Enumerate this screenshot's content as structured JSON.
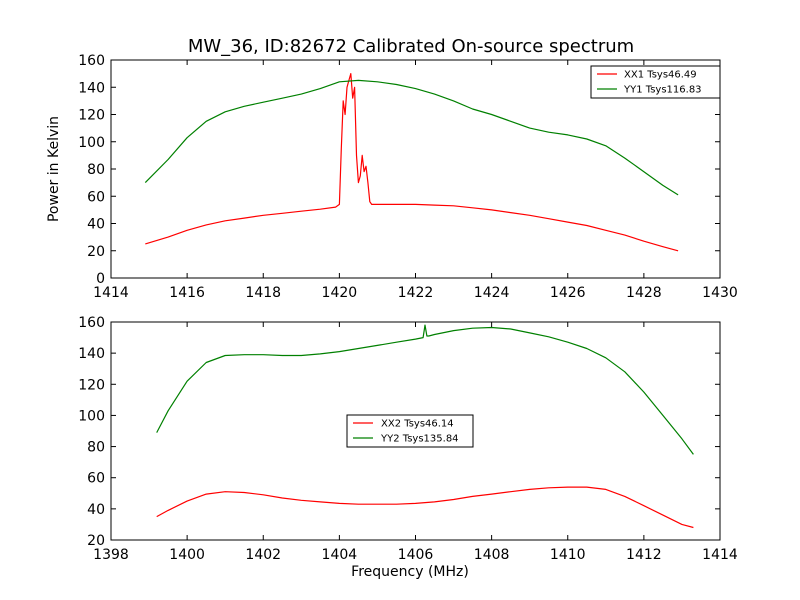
{
  "chart_data": [
    {
      "type": "line",
      "title": "MW_36, ID:82672 Calibrated On-source spectrum",
      "xlabel": "",
      "ylabel": "Power in Kelvin",
      "xlim": [
        1414,
        1430
      ],
      "ylim": [
        0,
        160
      ],
      "xticks": [
        1414,
        1416,
        1418,
        1420,
        1422,
        1424,
        1426,
        1428,
        1430
      ],
      "yticks": [
        0,
        20,
        40,
        60,
        80,
        100,
        120,
        140,
        160
      ],
      "grid": false,
      "legend_position": "top-right",
      "series": [
        {
          "name": "XX1 Tsys46.49",
          "color": "#ff0000",
          "x": [
            1414.9,
            1415.5,
            1416.0,
            1416.5,
            1417.0,
            1417.5,
            1418.0,
            1418.5,
            1419.0,
            1419.5,
            1419.9,
            1420.0,
            1420.05,
            1420.1,
            1420.15,
            1420.2,
            1420.25,
            1420.3,
            1420.35,
            1420.4,
            1420.45,
            1420.5,
            1420.55,
            1420.6,
            1420.65,
            1420.7,
            1420.75,
            1420.8,
            1420.85,
            1421.0,
            1421.5,
            1422.0,
            1422.5,
            1423.0,
            1423.5,
            1424.0,
            1424.5,
            1425.0,
            1425.5,
            1426.0,
            1426.5,
            1427.0,
            1427.5,
            1428.0,
            1428.5,
            1428.9
          ],
          "y": [
            25,
            30,
            35,
            39,
            42,
            44,
            46,
            47.5,
            49,
            50.5,
            52,
            54,
            95,
            130,
            120,
            140,
            145,
            150,
            132,
            140,
            90,
            70,
            75,
            90,
            78,
            82,
            70,
            56,
            54,
            54,
            54,
            54,
            53.5,
            53,
            51.5,
            50,
            48,
            46,
            43.5,
            41,
            38.5,
            35,
            31.5,
            27,
            23,
            20
          ]
        },
        {
          "name": "YY1 Tsys116.83",
          "color": "#008000",
          "x": [
            1414.9,
            1415.5,
            1416.0,
            1416.5,
            1417.0,
            1417.5,
            1418.0,
            1418.5,
            1419.0,
            1419.5,
            1420.0,
            1420.5,
            1421.0,
            1421.5,
            1422.0,
            1422.5,
            1423.0,
            1423.5,
            1424.0,
            1424.5,
            1425.0,
            1425.5,
            1426.0,
            1426.5,
            1427.0,
            1427.5,
            1428.0,
            1428.5,
            1428.9
          ],
          "y": [
            70,
            87,
            103,
            115,
            122,
            126,
            129,
            132,
            135,
            139,
            144,
            145,
            144,
            142,
            139,
            135,
            130,
            124,
            120,
            115,
            110,
            107,
            105,
            102,
            97,
            88,
            78,
            68,
            61
          ]
        }
      ]
    },
    {
      "type": "line",
      "title": "",
      "xlabel": "Frequency (MHz)",
      "ylabel": "",
      "xlim": [
        1398,
        1414
      ],
      "ylim": [
        20,
        160
      ],
      "xticks": [
        1398,
        1400,
        1402,
        1404,
        1406,
        1408,
        1410,
        1412,
        1414
      ],
      "yticks": [
        20,
        40,
        60,
        80,
        100,
        120,
        140,
        160
      ],
      "grid": false,
      "legend_position": "center",
      "series": [
        {
          "name": "XX2 Tsys46.14",
          "color": "#ff0000",
          "x": [
            1399.2,
            1399.5,
            1400.0,
            1400.5,
            1401.0,
            1401.5,
            1402.0,
            1402.5,
            1403.0,
            1403.5,
            1404.0,
            1404.5,
            1405.0,
            1405.5,
            1406.0,
            1406.5,
            1407.0,
            1407.5,
            1408.0,
            1408.5,
            1409.0,
            1409.5,
            1410.0,
            1410.5,
            1411.0,
            1411.5,
            1412.0,
            1412.5,
            1413.0,
            1413.3
          ],
          "y": [
            35,
            39,
            45,
            49.5,
            51,
            50.5,
            49,
            47,
            45.5,
            44.5,
            43.5,
            43,
            43,
            43,
            43.5,
            44.5,
            46,
            48,
            49.5,
            51,
            52.5,
            53.5,
            54,
            54,
            52.5,
            48,
            42,
            36,
            30,
            28
          ]
        },
        {
          "name": "YY2 Tsys135.84",
          "color": "#008000",
          "x": [
            1399.2,
            1399.5,
            1400.0,
            1400.5,
            1401.0,
            1401.5,
            1402.0,
            1402.5,
            1403.0,
            1403.5,
            1404.0,
            1404.5,
            1405.0,
            1405.5,
            1406.0,
            1406.2,
            1406.25,
            1406.3,
            1406.35,
            1406.5,
            1407.0,
            1407.5,
            1408.0,
            1408.5,
            1409.0,
            1409.5,
            1410.0,
            1410.5,
            1411.0,
            1411.5,
            1412.0,
            1412.5,
            1413.0,
            1413.3
          ],
          "y": [
            89,
            103,
            122,
            134,
            138.5,
            139,
            139,
            138.5,
            138.5,
            139.5,
            141,
            143,
            145,
            147,
            149,
            150,
            158,
            151,
            151,
            152,
            154.5,
            156,
            156.5,
            155.5,
            153,
            150.5,
            147,
            143,
            137,
            128,
            115,
            100,
            85,
            75
          ]
        }
      ]
    }
  ]
}
